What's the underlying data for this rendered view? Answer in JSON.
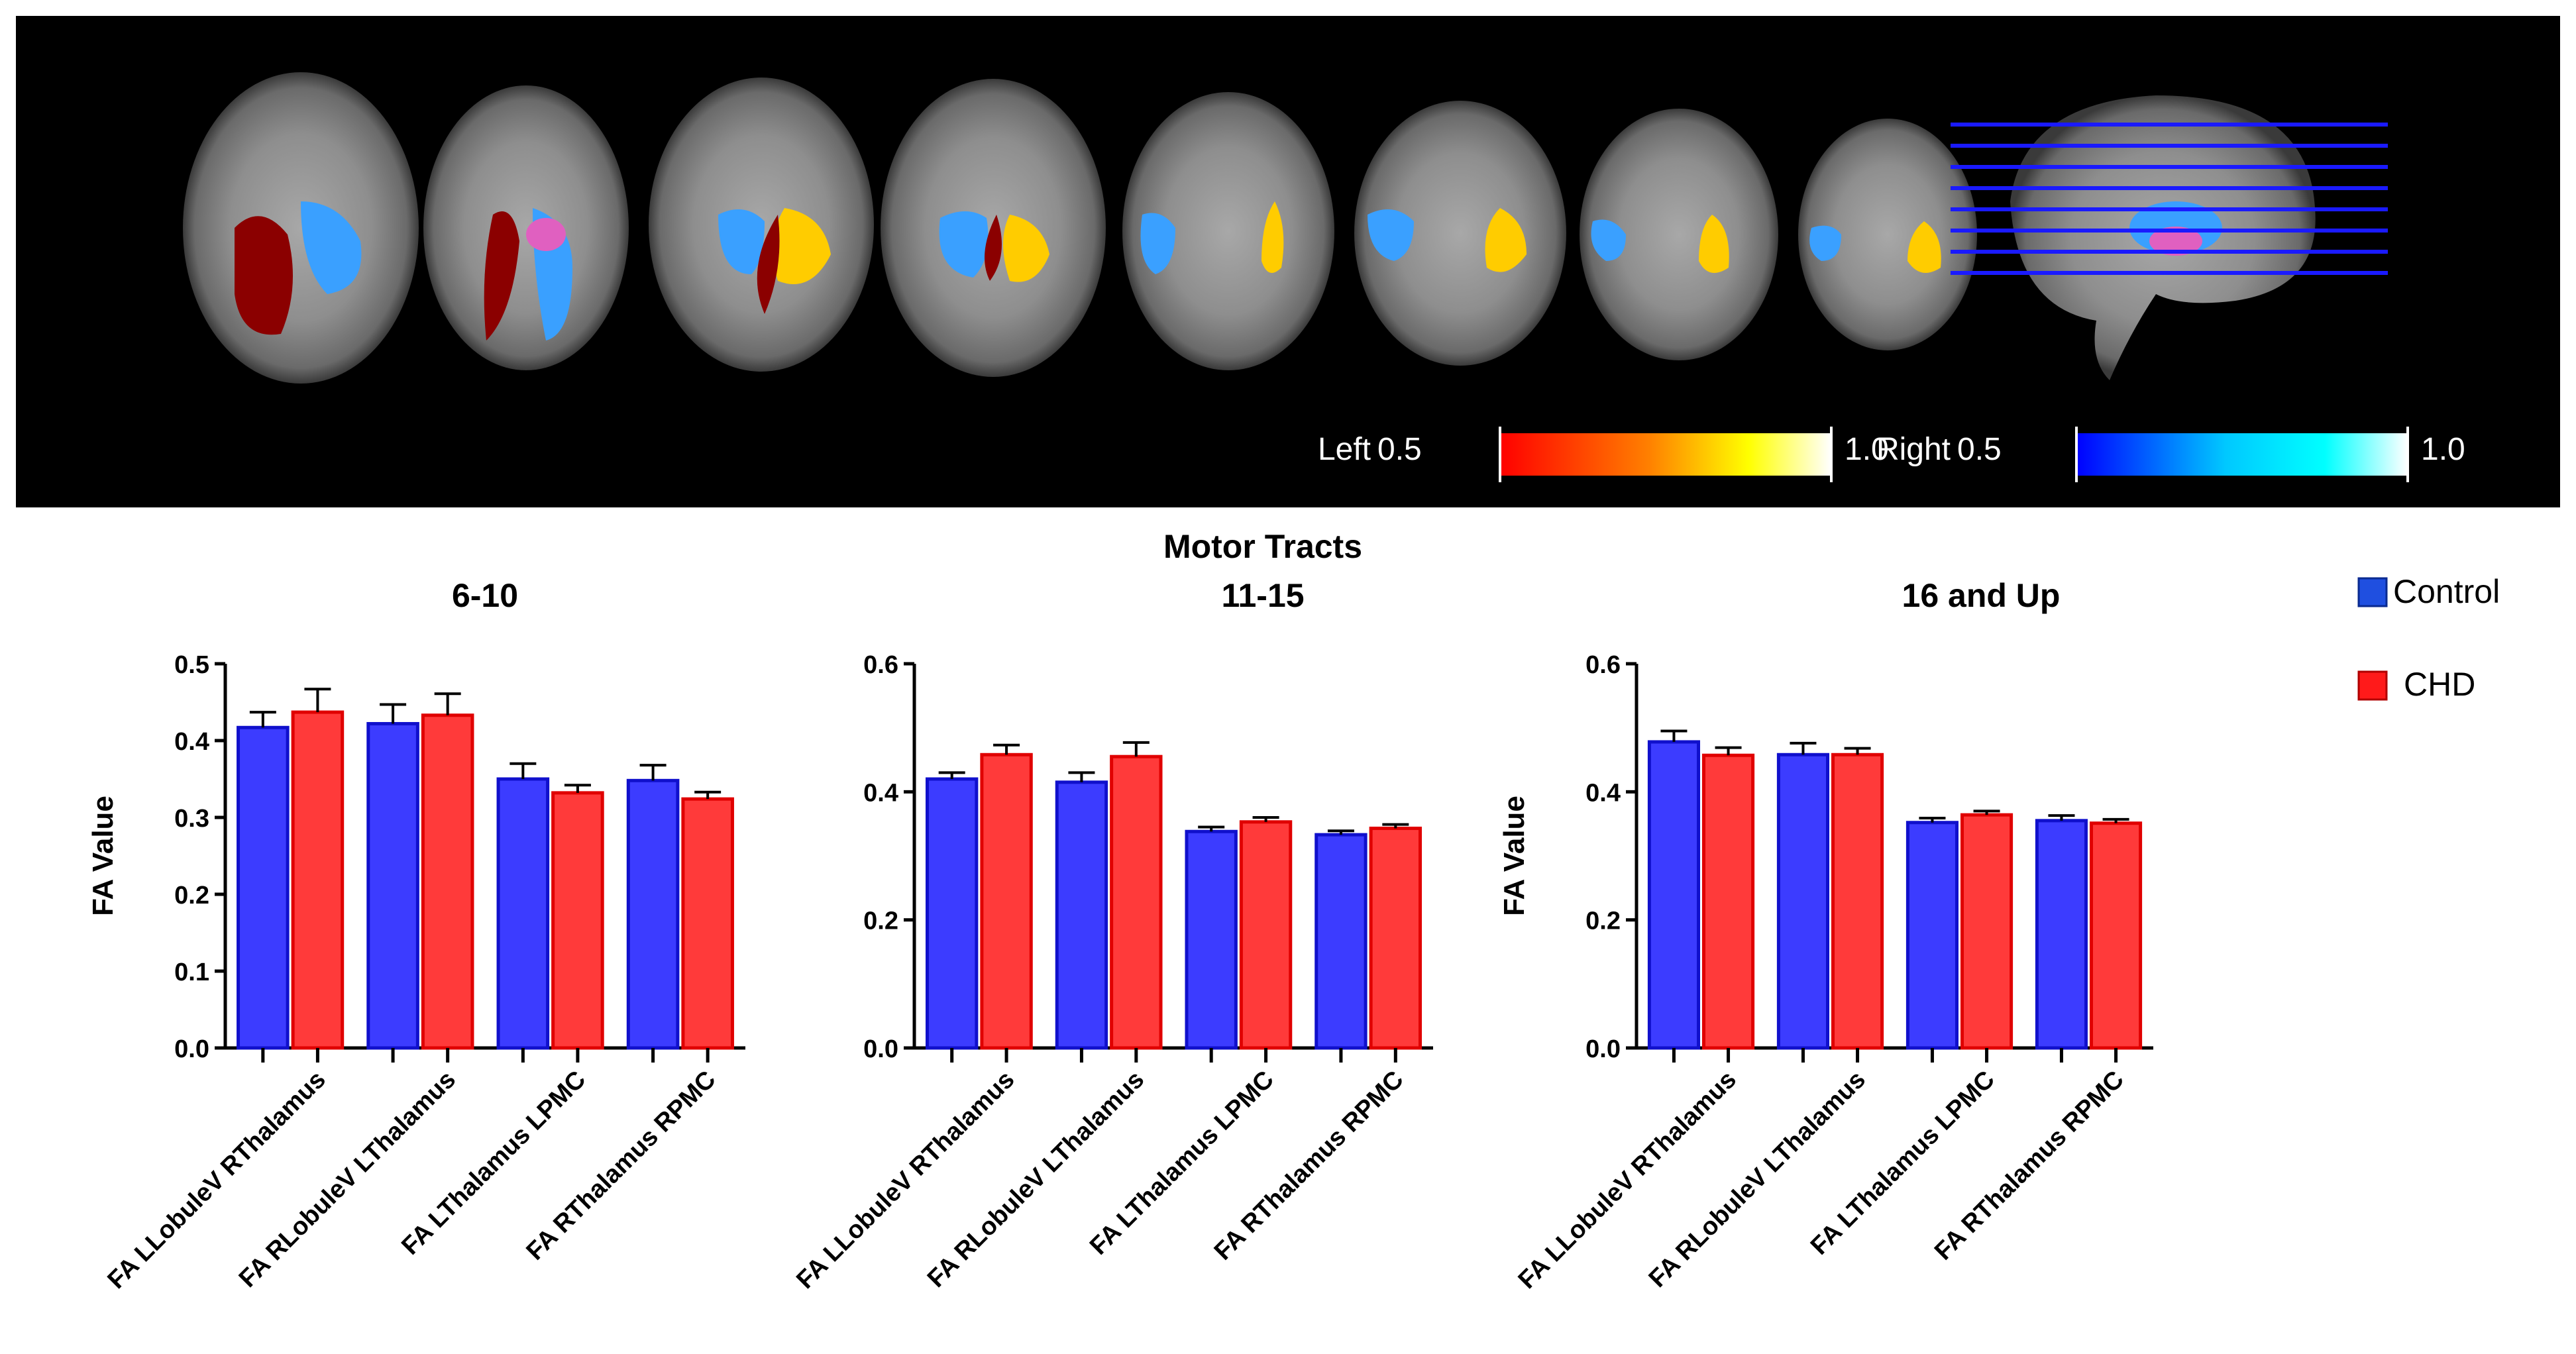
{
  "figure": {
    "suptitle": "Motor Tracts",
    "colorbars": [
      {
        "label": "Left",
        "min": "0.5",
        "max": "1.0",
        "colors": [
          "#ff0000",
          "#ff8000",
          "#ffff00",
          "#ffffff"
        ]
      },
      {
        "label": "Right",
        "min": "0.5",
        "max": "1.0",
        "colors": [
          "#0000ff",
          "#00c8ff",
          "#00ffff",
          "#ffffff"
        ]
      }
    ],
    "legend": {
      "items": [
        {
          "label": "Control",
          "color": "#1f4fe0"
        },
        {
          "label": "CHD",
          "color": "#ff1a1a"
        }
      ],
      "position": "right"
    }
  },
  "chart_data": [
    {
      "type": "bar",
      "title": "6-10",
      "ylabel": "FA Value",
      "ylim": [
        0,
        0.5
      ],
      "yticks": [
        "0.0",
        "0.1",
        "0.2",
        "0.3",
        "0.4",
        "0.5"
      ],
      "categories": [
        "FA LLobuleV RThalamus",
        "FA RLobuleV LThalamus",
        "FA LThalamus LPMC",
        "FA RThalamus RPMC"
      ],
      "series": [
        {
          "name": "Control",
          "values": [
            0.417,
            0.422,
            0.35,
            0.348
          ],
          "errors": [
            0.02,
            0.025,
            0.02,
            0.02
          ]
        },
        {
          "name": "CHD",
          "values": [
            0.437,
            0.433,
            0.332,
            0.324
          ],
          "errors": [
            0.03,
            0.028,
            0.01,
            0.009
          ]
        }
      ]
    },
    {
      "type": "bar",
      "title": "11-15",
      "ylabel": "",
      "ylim": [
        0,
        0.6
      ],
      "yticks": [
        "0.0",
        "0.2",
        "0.4",
        "0.6"
      ],
      "categories": [
        "FA LLobuleV RThalamus",
        "FA RLobuleV LThalamus",
        "FA LThalamus LPMC",
        "FA RThalamus RPMC"
      ],
      "series": [
        {
          "name": "Control",
          "values": [
            0.42,
            0.415,
            0.338,
            0.333
          ],
          "errors": [
            0.01,
            0.015,
            0.007,
            0.006
          ]
        },
        {
          "name": "CHD",
          "values": [
            0.458,
            0.455,
            0.353,
            0.343
          ],
          "errors": [
            0.015,
            0.022,
            0.007,
            0.006
          ]
        }
      ]
    },
    {
      "type": "bar",
      "title": "16 and Up",
      "ylabel": "FA Value",
      "ylim": [
        0,
        0.6
      ],
      "yticks": [
        "0.0",
        "0.2",
        "0.4",
        "0.6"
      ],
      "categories": [
        "FA LLobuleV RThalamus",
        "FA RLobuleV LThalamus",
        "FA LThalamus LPMC",
        "FA RThalamus RPMC"
      ],
      "series": [
        {
          "name": "Control",
          "values": [
            0.478,
            0.458,
            0.352,
            0.355
          ],
          "errors": [
            0.017,
            0.018,
            0.007,
            0.008
          ]
        },
        {
          "name": "CHD",
          "values": [
            0.457,
            0.458,
            0.364,
            0.351
          ],
          "errors": [
            0.012,
            0.01,
            0.006,
            0.006
          ]
        }
      ]
    }
  ]
}
